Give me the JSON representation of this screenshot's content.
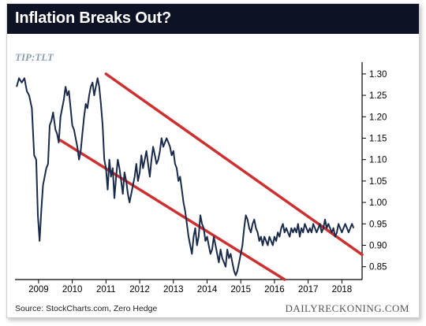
{
  "header": {
    "title": "Inflation Breaks Out?"
  },
  "ticker": "TIP:TLT",
  "footer": {
    "source": "Source: StockCharts.com, Zero Hedge",
    "brand": "DAILYRECKONING.COM"
  },
  "colors": {
    "line": "#1a2a4a",
    "channel": "#cc3030",
    "title_bar": "#0d1324",
    "ticker": "#8a9fb2"
  },
  "chart_data": {
    "type": "line",
    "x_tick_labels": [
      "2009",
      "2010",
      "2011",
      "2012",
      "2013",
      "2014",
      "2015",
      "2016",
      "2017",
      "2018"
    ],
    "y_tick_labels": [
      "1.30",
      "1.25",
      "1.20",
      "1.15",
      "1.10",
      "1.05",
      "1.00",
      "0.95",
      "0.90",
      "0.85"
    ],
    "y_ticks": [
      1.3,
      1.25,
      1.2,
      1.15,
      1.1,
      1.05,
      1.0,
      0.95,
      0.9,
      0.85
    ],
    "ylim": [
      0.82,
      1.32
    ],
    "xlim": [
      2008.3,
      2018.6
    ],
    "x_ticks": [
      2009,
      2010,
      2011,
      2012,
      2013,
      2014,
      2015,
      2016,
      2017,
      2018
    ],
    "series": [
      {
        "x": [
          2008.35,
          2008.42,
          2008.5,
          2008.58,
          2008.65,
          2008.72,
          2008.8,
          2008.87,
          2008.93,
          2008.98,
          2009.03,
          2009.08,
          2009.13,
          2009.18,
          2009.23,
          2009.28,
          2009.33,
          2009.38,
          2009.43,
          2009.5,
          2009.55,
          2009.6,
          2009.65,
          2009.7,
          2009.75,
          2009.8,
          2009.85,
          2009.9,
          2009.95,
          2010.0,
          2010.05,
          2010.1,
          2010.15,
          2010.2,
          2010.25,
          2010.3,
          2010.35,
          2010.4,
          2010.45,
          2010.5,
          2010.55,
          2010.6,
          2010.65,
          2010.7,
          2010.75,
          2010.8,
          2010.85,
          2010.9,
          2010.95,
          2011.0,
          2011.05,
          2011.1,
          2011.15,
          2011.2,
          2011.25,
          2011.3,
          2011.35,
          2011.4,
          2011.45,
          2011.5,
          2011.55,
          2011.6,
          2011.65,
          2011.7,
          2011.75,
          2011.8,
          2011.85,
          2011.9,
          2011.95,
          2012.0,
          2012.05,
          2012.1,
          2012.15,
          2012.2,
          2012.25,
          2012.3,
          2012.35,
          2012.4,
          2012.45,
          2012.5,
          2012.55,
          2012.6,
          2012.65,
          2012.7,
          2012.75,
          2012.8,
          2012.85,
          2012.9,
          2012.95,
          2013.0,
          2013.05,
          2013.1,
          2013.15,
          2013.2,
          2013.25,
          2013.3,
          2013.35,
          2013.4,
          2013.45,
          2013.5,
          2013.55,
          2013.6,
          2013.65,
          2013.7,
          2013.75,
          2013.8,
          2013.85,
          2013.9,
          2013.95,
          2014.0,
          2014.05,
          2014.1,
          2014.15,
          2014.2,
          2014.25,
          2014.3,
          2014.35,
          2014.4,
          2014.45,
          2014.5,
          2014.55,
          2014.6,
          2014.65,
          2014.7,
          2014.75,
          2014.8,
          2014.85,
          2014.9,
          2014.95,
          2015.0,
          2015.05,
          2015.1,
          2015.15,
          2015.2,
          2015.25,
          2015.3,
          2015.35,
          2015.4,
          2015.45,
          2015.5,
          2015.55,
          2015.6,
          2015.65,
          2015.7,
          2015.75,
          2015.8,
          2015.85,
          2015.9,
          2015.95,
          2016.0,
          2016.05,
          2016.1,
          2016.15,
          2016.2,
          2016.25,
          2016.3,
          2016.35,
          2016.4,
          2016.45,
          2016.5,
          2016.55,
          2016.6,
          2016.65,
          2016.7,
          2016.75,
          2016.8,
          2016.85,
          2016.9,
          2016.95,
          2017.0,
          2017.05,
          2017.1,
          2017.15,
          2017.2,
          2017.25,
          2017.3,
          2017.35,
          2017.4,
          2017.45,
          2017.5,
          2017.55,
          2017.6,
          2017.65,
          2017.7,
          2017.75,
          2017.8,
          2017.85,
          2017.9,
          2017.95,
          2018.0,
          2018.05,
          2018.1,
          2018.15,
          2018.2,
          2018.25,
          2018.3,
          2018.35
        ],
        "values": [
          1.27,
          1.29,
          1.28,
          1.29,
          1.26,
          1.25,
          1.22,
          1.11,
          1.1,
          0.97,
          0.91,
          0.98,
          1.04,
          1.06,
          1.08,
          1.09,
          1.18,
          1.19,
          1.21,
          1.17,
          1.16,
          1.14,
          1.2,
          1.22,
          1.24,
          1.27,
          1.25,
          1.26,
          1.22,
          1.18,
          1.17,
          1.15,
          1.13,
          1.1,
          1.12,
          1.16,
          1.2,
          1.23,
          1.22,
          1.25,
          1.27,
          1.28,
          1.25,
          1.27,
          1.29,
          1.27,
          1.23,
          1.18,
          1.1,
          1.08,
          1.03,
          1.1,
          1.06,
          1.08,
          1.01,
          1.06,
          1.1,
          1.08,
          1.05,
          1.02,
          1.07,
          1.05,
          1.02,
          1.0,
          1.02,
          1.04,
          1.06,
          1.09,
          1.05,
          1.07,
          1.11,
          1.08,
          1.1,
          1.12,
          1.09,
          1.06,
          1.1,
          1.13,
          1.11,
          1.09,
          1.1,
          1.12,
          1.15,
          1.13,
          1.14,
          1.15,
          1.14,
          1.13,
          1.11,
          1.12,
          1.09,
          1.08,
          1.05,
          1.06,
          1.03,
          1.0,
          0.98,
          0.95,
          0.92,
          0.9,
          0.88,
          0.92,
          0.94,
          0.9,
          0.92,
          0.97,
          0.95,
          0.94,
          0.91,
          0.92,
          0.9,
          0.88,
          0.89,
          0.92,
          0.9,
          0.88,
          0.86,
          0.89,
          0.87,
          0.86,
          0.85,
          0.89,
          0.87,
          0.88,
          0.86,
          0.84,
          0.83,
          0.84,
          0.86,
          0.88,
          0.9,
          0.94,
          0.97,
          0.96,
          0.94,
          0.93,
          0.95,
          0.96,
          0.94,
          0.93,
          0.91,
          0.92,
          0.9,
          0.92,
          0.91,
          0.9,
          0.92,
          0.91,
          0.9,
          0.92,
          0.91,
          0.93,
          0.92,
          0.94,
          0.95,
          0.93,
          0.94,
          0.93,
          0.92,
          0.94,
          0.93,
          0.94,
          0.93,
          0.95,
          0.92,
          0.94,
          0.93,
          0.95,
          0.94,
          0.93,
          0.94,
          0.93,
          0.95,
          0.94,
          0.93,
          0.94,
          0.95,
          0.93,
          0.94,
          0.96,
          0.94,
          0.95,
          0.94,
          0.93,
          0.94,
          0.92,
          0.93,
          0.95,
          0.94,
          0.93,
          0.94,
          0.95,
          0.94,
          0.93,
          0.94,
          0.95,
          0.94
        ]
      }
    ],
    "channel_lines": [
      {
        "x": [
          2011.0,
          2018.6
        ],
        "values": [
          1.3,
          0.878
        ]
      },
      {
        "x": [
          2009.65,
          2016.3
        ],
        "values": [
          1.145,
          0.82
        ]
      }
    ]
  }
}
